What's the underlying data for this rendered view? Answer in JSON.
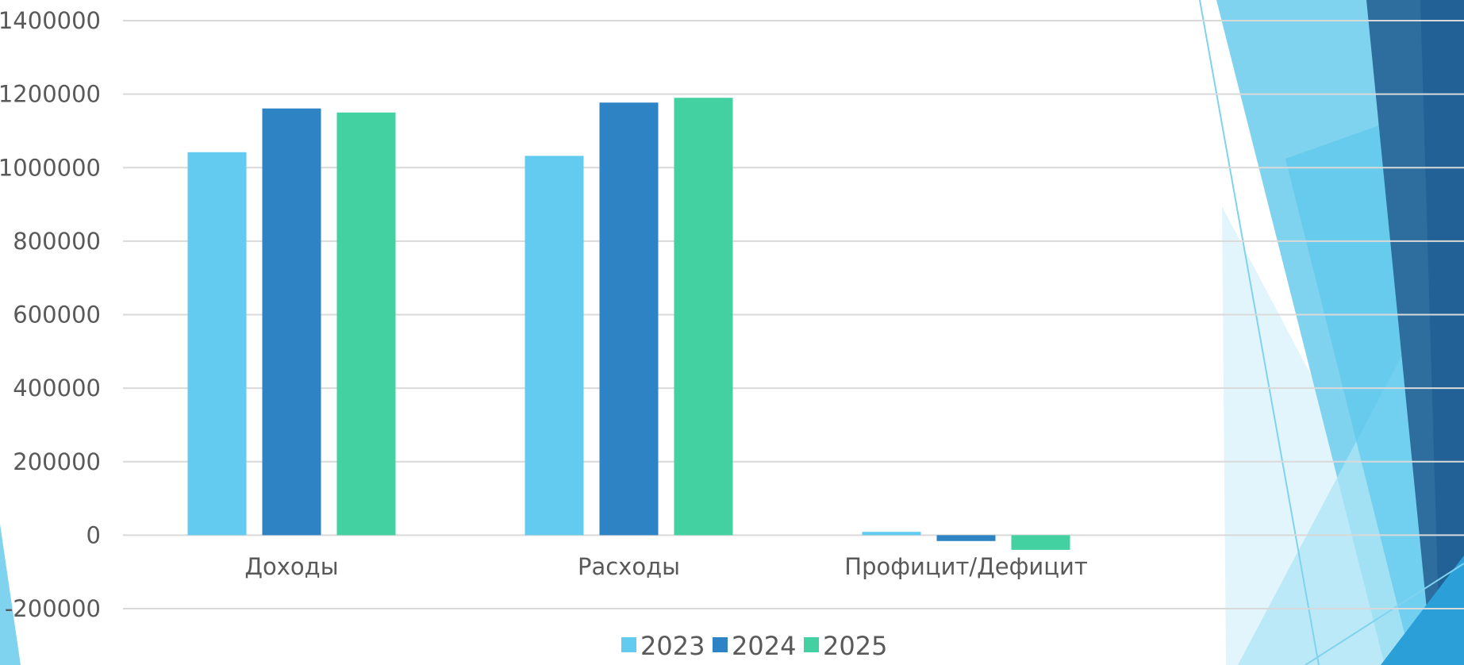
{
  "slide": {
    "theme_colors": {
      "light_blue": "#7fd3ef",
      "pale_blue": "#c9ecf8",
      "dark_blue": "#2e6e9e",
      "deep_blue": "#1f5f94",
      "bright_blue": "#2a9fd8"
    },
    "decoration": "decorative-side-triangles"
  },
  "chart_data": {
    "type": "bar",
    "title": "",
    "xlabel": "",
    "ylabel": "",
    "categories": [
      "Доходы",
      "Расходы",
      "Профицит/Дефицит"
    ],
    "series": [
      {
        "name": "2023",
        "color": "#62cbef",
        "values": [
          1042000,
          1032000,
          9000
        ]
      },
      {
        "name": "2024",
        "color": "#2e83c4",
        "values": [
          1161000,
          1177000,
          -16000
        ]
      },
      {
        "name": "2025",
        "color": "#43d1a2",
        "values": [
          1150000,
          1190000,
          -40000
        ]
      }
    ],
    "ylim": [
      -200000,
      1400000
    ],
    "y_ticks": [
      "-200000",
      "0",
      "200000",
      "400000",
      "600000",
      "800000",
      "1000000",
      "1200000",
      "1400000"
    ],
    "grid": true,
    "legend_position": "bottom"
  }
}
